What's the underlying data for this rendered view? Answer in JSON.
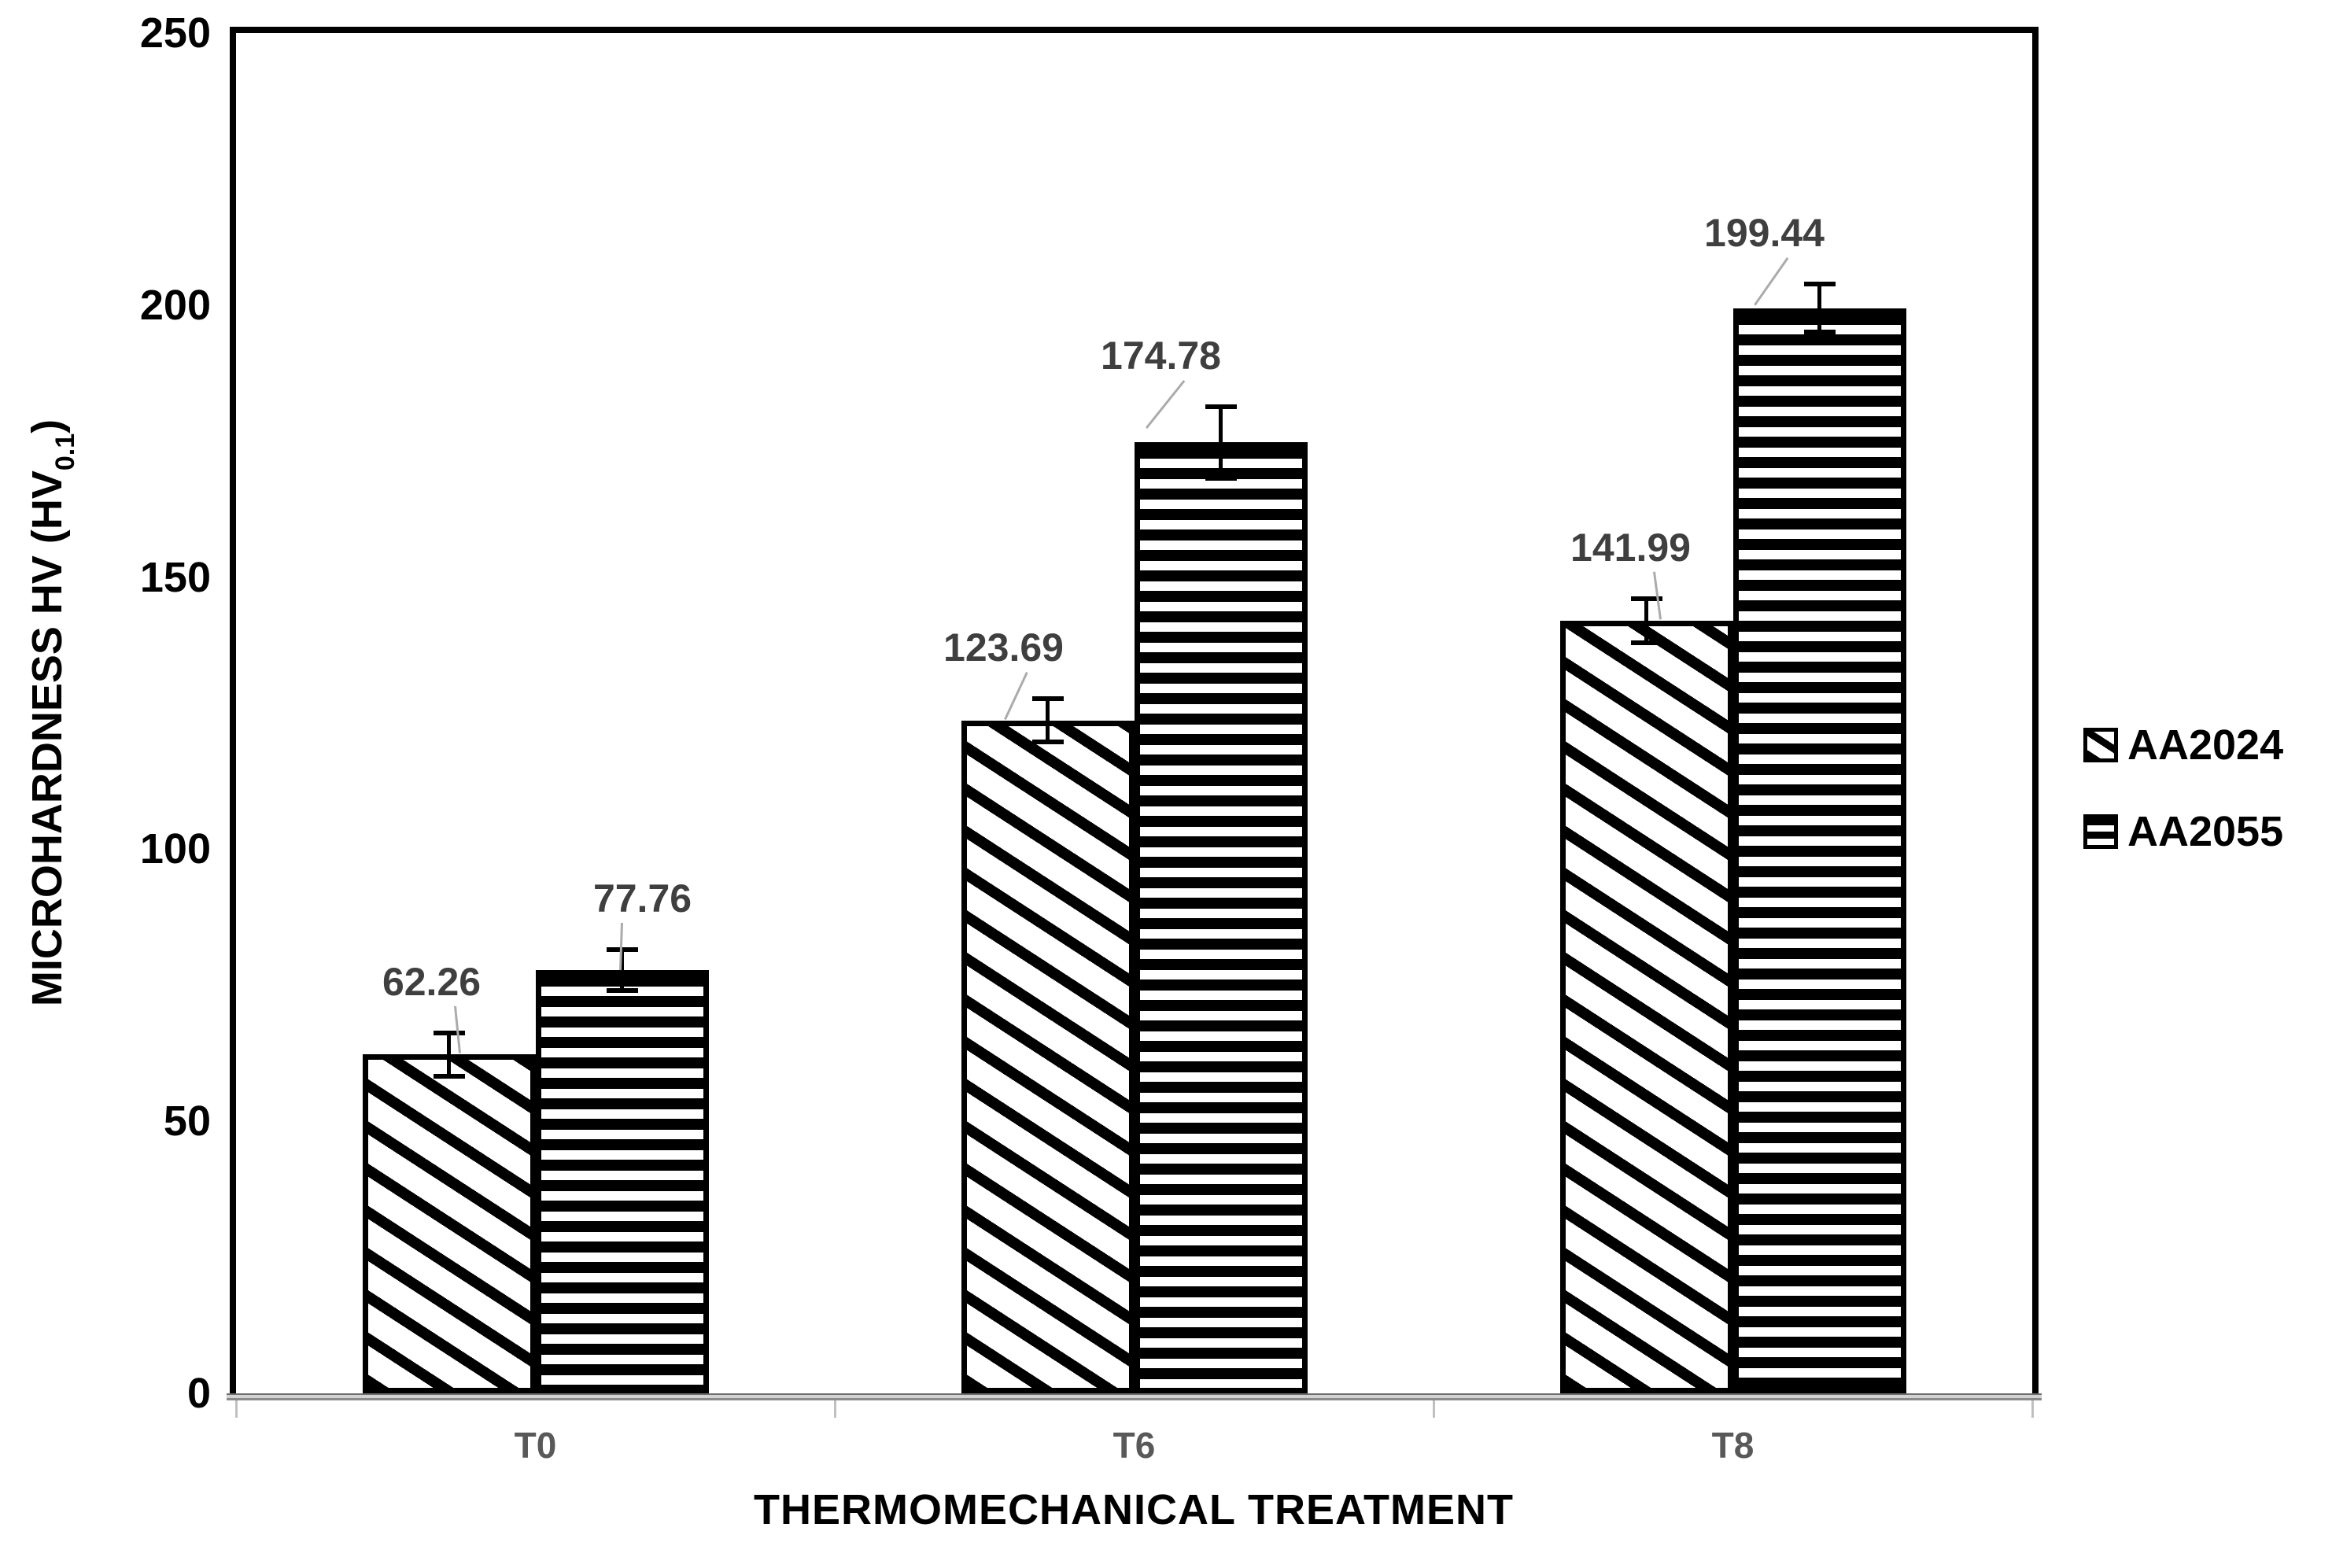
{
  "figure": {
    "background": "#ffffff"
  },
  "chart_data": {
    "type": "bar",
    "title": "",
    "categories": [
      "T0",
      "T6",
      "T8"
    ],
    "series": [
      {
        "name": "AA2024",
        "pattern": "diagonal-hatch",
        "values": [
          62.26,
          123.69,
          141.99
        ],
        "value_labels": [
          "62.26",
          "123.69",
          "141.99"
        ],
        "errors": [
          4.0,
          4.0,
          4.0
        ]
      },
      {
        "name": "AA2055",
        "pattern": "horizontal-stripes",
        "values": [
          77.76,
          174.78,
          199.44
        ],
        "value_labels": [
          "77.76",
          "174.78",
          "199.44"
        ],
        "errors": [
          3.8,
          6.6,
          4.4
        ]
      }
    ],
    "xlabel": "THERMOMECHANICAL TREATMENT",
    "ylabel": {
      "text": "MICROHARDNESS HV (HV",
      "subscript": "0.1",
      "suffix": ")"
    },
    "ylim": [
      0,
      250
    ],
    "yticks": [
      "0",
      "50",
      "100",
      "150",
      "200",
      "250"
    ],
    "grid": false,
    "legend_position": "right",
    "colors": {
      "bar_fill": "#ffffff",
      "bar_stroke": "#000000",
      "data_label": "#3f3f3f",
      "x_tick_label": "#595959",
      "y_tick_label": "#000000",
      "axis_line": "#8a8a8a",
      "leader_line": "#ababab"
    }
  }
}
